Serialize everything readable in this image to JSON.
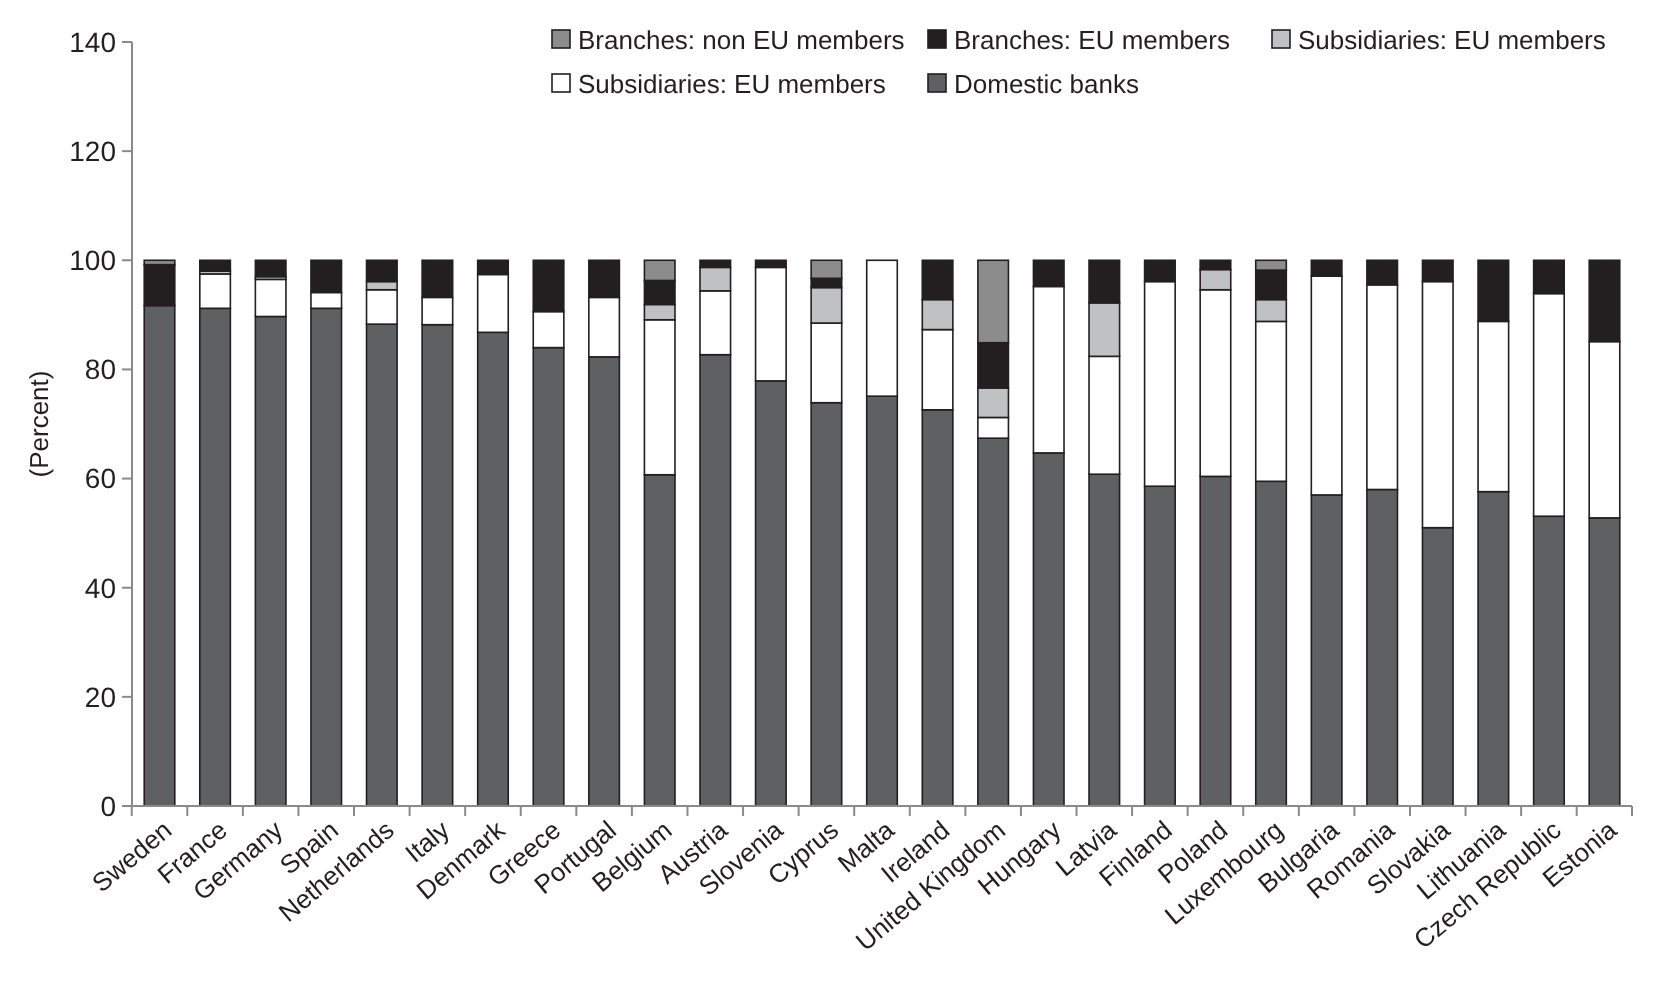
{
  "chart_data": {
    "type": "bar",
    "stacked": true,
    "ylabel": "(Percent)",
    "ylim": [
      0,
      140
    ],
    "yticks": [
      0,
      20,
      40,
      60,
      80,
      100,
      120,
      140
    ],
    "grid": false,
    "legend": "top",
    "categories": [
      "Sweden",
      "France",
      "Germany",
      "Spain",
      "Netherlands",
      "Italy",
      "Denmark",
      "Greece",
      "Portugal",
      "Belgium",
      "Austria",
      "Slovenia",
      "Cyprus",
      "Malta",
      "Ireland",
      "United Kingdom",
      "Hungary",
      "Latvia",
      "Finland",
      "Poland",
      "Luxembourg",
      "Bulgaria",
      "Romania",
      "Slovakia",
      "Lithuania",
      "Czech Republic",
      "Estonia"
    ],
    "series": [
      {
        "name": "Domestic banks",
        "color": "#5f6062",
        "values": [
          91.7,
          91.2,
          89.7,
          91.2,
          88.3,
          88.2,
          86.8,
          84,
          82.3,
          60.7,
          82.7,
          77.9,
          73.9,
          75.1,
          72.6,
          67.4,
          64.7,
          60.8,
          58.6,
          60.4,
          59.5,
          57,
          58,
          51,
          57.6,
          53.1,
          52.8
        ]
      },
      {
        "name": "Subsidiaries: EU members",
        "color": "#ffffff",
        "values": [
          0,
          6.3,
          6.8,
          2.9,
          6.3,
          5,
          10.6,
          6.6,
          10.9,
          28.4,
          11.7,
          20.8,
          14.6,
          24.9,
          14.7,
          3.8,
          30.5,
          21.6,
          37.5,
          34.2,
          29.3,
          40.1,
          37.5,
          45.1,
          31.2,
          40.8,
          32.3
        ]
      },
      {
        "name": "Subsidiaries: EU members",
        "color": "#c0c1c3",
        "values": [
          0,
          0.5,
          0.5,
          0,
          1.5,
          0,
          0,
          0,
          0,
          2.8,
          4.3,
          0,
          6.5,
          0,
          5.5,
          5.4,
          0,
          9.8,
          0,
          3.7,
          4,
          0,
          0,
          0,
          0,
          0,
          0
        ]
      },
      {
        "name": "Branches: EU members",
        "color": "#231f20",
        "values": [
          7.5,
          2,
          3,
          5.9,
          3.9,
          6.8,
          2.6,
          9.4,
          6.8,
          4.4,
          1.3,
          1.3,
          1.7,
          0,
          7.2,
          8.3,
          4.8,
          7.8,
          3.9,
          1.7,
          5.4,
          2.9,
          4.5,
          3.9,
          11.2,
          6.1,
          14.9
        ]
      },
      {
        "name": "Branches: non EU members",
        "color": "#8c8c8c",
        "values": [
          0.8,
          0,
          0,
          0,
          0,
          0,
          0,
          0,
          0,
          3.7,
          0,
          0,
          3.3,
          0,
          0,
          15.1,
          0,
          0,
          0,
          0,
          1.8,
          0,
          0,
          0,
          0,
          0,
          0
        ]
      }
    ]
  }
}
